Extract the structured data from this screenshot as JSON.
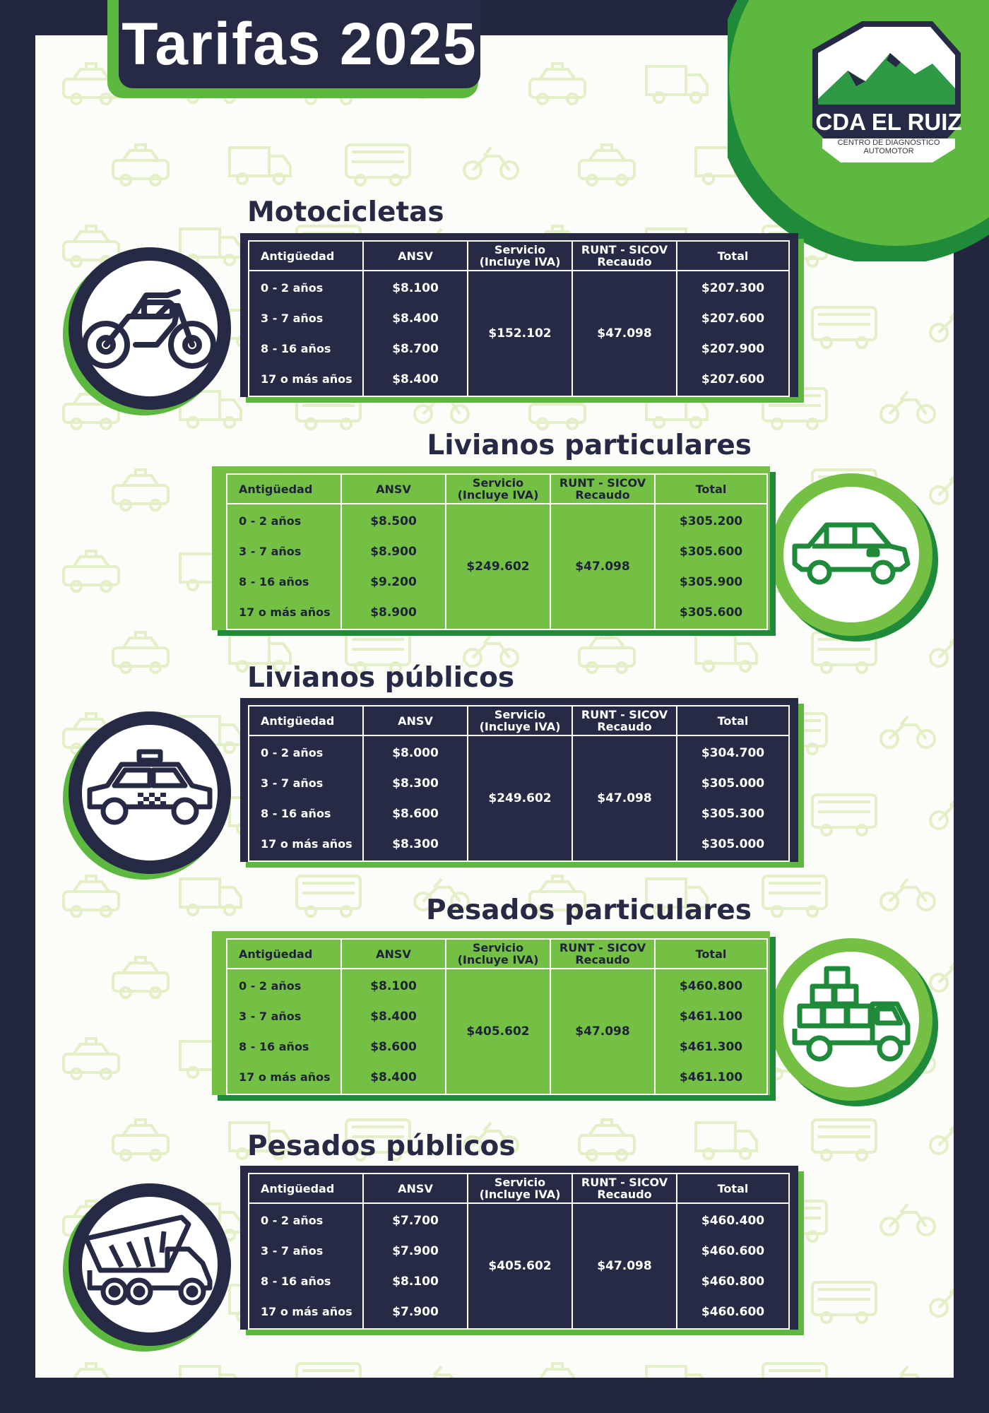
{
  "title": "Tarifas 2025",
  "brand": {
    "name": "CDA EL RUIZ",
    "subtitle": "CENTRO DE DIAGNÓSTICO AUTOMOTOR"
  },
  "colors": {
    "navy": "#262a45",
    "green": "#74c044",
    "dark_green": "#1f8a3a",
    "accent_green": "#5cb83e"
  },
  "headers": {
    "age": "Antigüedad",
    "ansv": "ANSV",
    "service": "Servicio (Incluye IVA)",
    "runt": "RUNT - SICOV Recaudo",
    "total": "Total"
  },
  "sections": [
    {
      "title": "Motocicletas",
      "icon": "motorcycle-icon",
      "ages": [
        "0 - 2 años",
        "3 - 7 años",
        "8 - 16 años",
        "17 o más años"
      ],
      "ansv": [
        "$8.100",
        "$8.400",
        "$8.700",
        "$8.400"
      ],
      "service": "$152.102",
      "runt": "$47.098",
      "totals": [
        "$207.300",
        "$207.600",
        "$207.900",
        "$207.600"
      ]
    },
    {
      "title": "Livianos particulares",
      "icon": "car-icon",
      "ages": [
        "0 - 2 años",
        "3 - 7 años",
        "8 - 16 años",
        "17 o más años"
      ],
      "ansv": [
        "$8.500",
        "$8.900",
        "$9.200",
        "$8.900"
      ],
      "service": "$249.602",
      "runt": "$47.098",
      "totals": [
        "$305.200",
        "$305.600",
        "$305.900",
        "$305.600"
      ]
    },
    {
      "title": "Livianos públicos",
      "icon": "taxi-icon",
      "ages": [
        "0 - 2 años",
        "3 - 7 años",
        "8 - 16 años",
        "17 o más años"
      ],
      "ansv": [
        "$8.000",
        "$8.300",
        "$8.600",
        "$8.300"
      ],
      "service": "$249.602",
      "runt": "$47.098",
      "totals": [
        "$304.700",
        "$305.000",
        "$305.300",
        "$305.000"
      ]
    },
    {
      "title": "Pesados particulares",
      "icon": "cargo-truck-icon",
      "ages": [
        "0 - 2 años",
        "3 - 7 años",
        "8 - 16 años",
        "17 o más años"
      ],
      "ansv": [
        "$8.100",
        "$8.400",
        "$8.600",
        "$8.400"
      ],
      "service": "$405.602",
      "runt": "$47.098",
      "totals": [
        "$460.800",
        "$461.100",
        "$461.300",
        "$461.100"
      ]
    },
    {
      "title": "Pesados públicos",
      "icon": "dump-truck-icon",
      "ages": [
        "0 - 2 años",
        "3 - 7 años",
        "8 - 16 años",
        "17 o más años"
      ],
      "ansv": [
        "$7.700",
        "$7.900",
        "$8.100",
        "$7.900"
      ],
      "service": "$405.602",
      "runt": "$47.098",
      "totals": [
        "$460.400",
        "$460.600",
        "$460.800",
        "$460.600"
      ]
    }
  ]
}
